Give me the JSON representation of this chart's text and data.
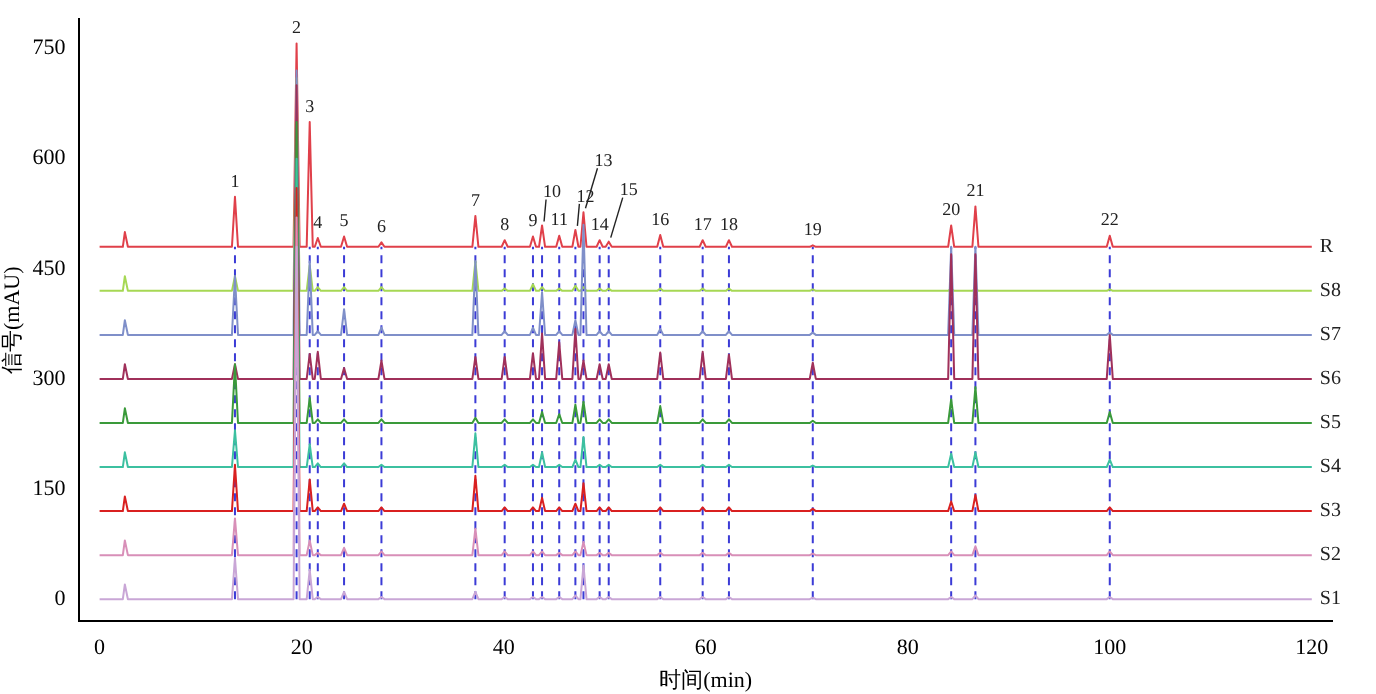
{
  "chart_data": {
    "type": "line",
    "xlabel": "时间(min)",
    "ylabel": "信号(mAU)",
    "xlim": [
      -2,
      122
    ],
    "xticks": [
      0,
      20,
      40,
      60,
      80,
      100,
      120
    ],
    "ylim": [
      -30,
      790
    ],
    "yticks": [
      0,
      150,
      300,
      450,
      600,
      750
    ],
    "grid": false,
    "legend": false,
    "marker": "none",
    "line_style": "solid",
    "x": [
      0,
      2.3,
      2.5,
      2.8,
      13.1,
      13.4,
      13.7,
      19.2,
      19.5,
      19.8,
      20.5,
      20.8,
      21.1,
      21.3,
      21.6,
      21.9,
      23.9,
      24.2,
      24.5,
      27.6,
      27.9,
      28.2,
      36.9,
      37.2,
      37.5,
      39.8,
      40.1,
      40.4,
      42.6,
      42.9,
      43.2,
      43.5,
      43.8,
      44.1,
      45.2,
      45.5,
      45.8,
      46.8,
      47.1,
      47.4,
      47.6,
      47.9,
      48.2,
      49.2,
      49.5,
      49.8,
      50.1,
      50.4,
      50.7,
      55.2,
      55.5,
      55.8,
      59.4,
      59.7,
      60.0,
      62.0,
      62.3,
      62.6,
      70.3,
      70.6,
      70.9,
      84.0,
      84.3,
      84.6,
      86.4,
      86.7,
      87.0,
      99.7,
      100,
      100.3,
      120
    ],
    "series": [
      {
        "name": "S1",
        "color": "#c9a6d6",
        "values": [
          0,
          0,
          20,
          0,
          0,
          56,
          0,
          0,
          480,
          0,
          0,
          40,
          0,
          0,
          3,
          0,
          0,
          10,
          0,
          0,
          3,
          0,
          0,
          10,
          0,
          0,
          3,
          0,
          0,
          3,
          0,
          0,
          3,
          0,
          0,
          3,
          0,
          0,
          5,
          0,
          0,
          46,
          0,
          0,
          3,
          0,
          0,
          3,
          0,
          0,
          3,
          0,
          0,
          3,
          0,
          0,
          3,
          0,
          0,
          2,
          0,
          0,
          3,
          0,
          0,
          5,
          0,
          0,
          3,
          0,
          0
        ]
      },
      {
        "name": "S2",
        "color": "#d88fb8",
        "values": [
          60,
          60,
          80,
          60,
          60,
          110,
          60,
          60,
          520,
          60,
          60,
          80,
          60,
          60,
          63,
          60,
          60,
          70,
          60,
          60,
          65,
          60,
          60,
          96,
          60,
          60,
          65,
          60,
          60,
          65,
          60,
          60,
          65,
          60,
          60,
          63,
          60,
          60,
          65,
          60,
          60,
          78,
          60,
          60,
          63,
          60,
          60,
          63,
          60,
          60,
          63,
          60,
          60,
          63,
          60,
          60,
          63,
          60,
          60,
          62,
          60,
          60,
          65,
          60,
          60,
          72,
          60,
          60,
          65,
          60,
          60
        ]
      },
      {
        "name": "S3",
        "color": "#d92020",
        "values": [
          120,
          120,
          140,
          120,
          120,
          183,
          120,
          120,
          560,
          120,
          120,
          163,
          120,
          120,
          125,
          120,
          120,
          130,
          120,
          120,
          125,
          120,
          120,
          168,
          120,
          120,
          125,
          120,
          120,
          125,
          120,
          120,
          138,
          120,
          120,
          125,
          120,
          120,
          130,
          120,
          120,
          158,
          120,
          120,
          125,
          120,
          120,
          125,
          120,
          120,
          125,
          120,
          120,
          125,
          120,
          120,
          125,
          120,
          120,
          123,
          120,
          120,
          133,
          120,
          120,
          142,
          120,
          120,
          125,
          120,
          120
        ]
      },
      {
        "name": "S4",
        "color": "#3cc0a0",
        "values": [
          180,
          180,
          200,
          180,
          180,
          230,
          180,
          180,
          600,
          180,
          180,
          211,
          180,
          180,
          185,
          180,
          180,
          185,
          180,
          180,
          183,
          180,
          180,
          226,
          180,
          180,
          183,
          180,
          180,
          183,
          180,
          180,
          200,
          180,
          180,
          183,
          180,
          180,
          190,
          180,
          180,
          221,
          180,
          180,
          183,
          180,
          180,
          183,
          180,
          180,
          183,
          180,
          180,
          183,
          180,
          180,
          183,
          180,
          180,
          182,
          180,
          180,
          198,
          180,
          180,
          200,
          180,
          180,
          190,
          180,
          180
        ]
      },
      {
        "name": "S5",
        "color": "#3a9a3a",
        "values": [
          240,
          240,
          260,
          240,
          240,
          320,
          240,
          240,
          650,
          240,
          240,
          274,
          240,
          240,
          245,
          240,
          240,
          245,
          240,
          240,
          245,
          240,
          240,
          247,
          240,
          240,
          245,
          240,
          240,
          245,
          240,
          240,
          255,
          240,
          240,
          252,
          240,
          240,
          265,
          240,
          240,
          269,
          240,
          240,
          245,
          240,
          240,
          245,
          240,
          240,
          263,
          240,
          240,
          245,
          240,
          240,
          245,
          240,
          240,
          243,
          240,
          240,
          272,
          240,
          240,
          289,
          240,
          240,
          255,
          240,
          240
        ]
      },
      {
        "name": "S6",
        "color": "#a0305a",
        "values": [
          300,
          300,
          320,
          300,
          300,
          320,
          300,
          300,
          700,
          300,
          300,
          334,
          300,
          300,
          337,
          300,
          300,
          315,
          300,
          300,
          325,
          300,
          300,
          330,
          300,
          300,
          330,
          300,
          300,
          335,
          300,
          300,
          362,
          300,
          300,
          350,
          300,
          300,
          368,
          300,
          300,
          325,
          300,
          300,
          320,
          300,
          300,
          320,
          300,
          300,
          336,
          300,
          300,
          337,
          300,
          300,
          333,
          300,
          300,
          322,
          300,
          300,
          470,
          300,
          300,
          470,
          300,
          300,
          360,
          300,
          300
        ]
      },
      {
        "name": "S7",
        "color": "#7f8fc9",
        "values": [
          360,
          360,
          380,
          360,
          360,
          440,
          360,
          360,
          720,
          360,
          360,
          460,
          360,
          360,
          365,
          360,
          360,
          395,
          360,
          360,
          370,
          360,
          360,
          460,
          360,
          360,
          365,
          360,
          360,
          370,
          360,
          360,
          418,
          360,
          360,
          365,
          360,
          360,
          380,
          360,
          360,
          510,
          360,
          360,
          365,
          360,
          360,
          365,
          360,
          360,
          368,
          360,
          360,
          365,
          360,
          360,
          365,
          360,
          360,
          363,
          360,
          360,
          480,
          360,
          360,
          480,
          360,
          360,
          363,
          360,
          360
        ]
      },
      {
        "name": "S8",
        "color": "#a6d854",
        "values": [
          420,
          420,
          440,
          420,
          420,
          440,
          420,
          420,
          710,
          420,
          420,
          455,
          420,
          420,
          425,
          420,
          420,
          425,
          420,
          420,
          425,
          420,
          420,
          460,
          420,
          420,
          423,
          420,
          420,
          429,
          420,
          420,
          425,
          420,
          420,
          423,
          420,
          420,
          427,
          420,
          420,
          425,
          420,
          420,
          423,
          420,
          420,
          423,
          420,
          420,
          423,
          420,
          420,
          423,
          420,
          420,
          423,
          420,
          420,
          422,
          420,
          420,
          423,
          420,
          420,
          423,
          420,
          420,
          422,
          420,
          420
        ]
      },
      {
        "name": "R",
        "color": "#e0404a",
        "values": [
          480,
          480,
          500,
          480,
          480,
          548,
          480,
          480,
          757,
          480,
          480,
          650,
          480,
          480,
          492,
          480,
          480,
          494,
          480,
          480,
          486,
          480,
          480,
          522,
          480,
          480,
          489,
          480,
          480,
          494,
          480,
          480,
          509,
          480,
          480,
          495,
          480,
          480,
          503,
          480,
          480,
          527,
          480,
          480,
          489,
          480,
          480,
          487,
          480,
          480,
          496,
          480,
          480,
          489,
          480,
          480,
          489,
          480,
          480,
          482,
          480,
          480,
          509,
          480,
          480,
          535,
          480,
          480,
          495,
          480,
          480
        ]
      }
    ],
    "ref_lines": [
      {
        "axis": "x",
        "value": 13.4,
        "color": "#3b3bd6",
        "line_style": "dashed"
      },
      {
        "axis": "x",
        "value": 19.5,
        "color": "#3b3bd6",
        "line_style": "dashed"
      },
      {
        "axis": "x",
        "value": 20.8,
        "color": "#3b3bd6",
        "line_style": "dashed"
      },
      {
        "axis": "x",
        "value": 21.6,
        "color": "#3b3bd6",
        "line_style": "dashed"
      },
      {
        "axis": "x",
        "value": 24.2,
        "color": "#3b3bd6",
        "line_style": "dashed"
      },
      {
        "axis": "x",
        "value": 27.9,
        "color": "#3b3bd6",
        "line_style": "dashed"
      },
      {
        "axis": "x",
        "value": 37.2,
        "color": "#3b3bd6",
        "line_style": "dashed"
      },
      {
        "axis": "x",
        "value": 40.1,
        "color": "#3b3bd6",
        "line_style": "dashed"
      },
      {
        "axis": "x",
        "value": 42.9,
        "color": "#3b3bd6",
        "line_style": "dashed"
      },
      {
        "axis": "x",
        "value": 43.8,
        "color": "#3b3bd6",
        "line_style": "dashed"
      },
      {
        "axis": "x",
        "value": 45.5,
        "color": "#3b3bd6",
        "line_style": "dashed"
      },
      {
        "axis": "x",
        "value": 47.1,
        "color": "#3b3bd6",
        "line_style": "dashed"
      },
      {
        "axis": "x",
        "value": 47.9,
        "color": "#3b3bd6",
        "line_style": "dashed"
      },
      {
        "axis": "x",
        "value": 49.5,
        "color": "#3b3bd6",
        "line_style": "dashed"
      },
      {
        "axis": "x",
        "value": 50.4,
        "color": "#3b3bd6",
        "line_style": "dashed"
      },
      {
        "axis": "x",
        "value": 55.5,
        "color": "#3b3bd6",
        "line_style": "dashed"
      },
      {
        "axis": "x",
        "value": 59.7,
        "color": "#3b3bd6",
        "line_style": "dashed"
      },
      {
        "axis": "x",
        "value": 62.3,
        "color": "#3b3bd6",
        "line_style": "dashed"
      },
      {
        "axis": "x",
        "value": 70.6,
        "color": "#3b3bd6",
        "line_style": "dashed"
      },
      {
        "axis": "x",
        "value": 84.3,
        "color": "#3b3bd6",
        "line_style": "dashed"
      },
      {
        "axis": "x",
        "value": 86.7,
        "color": "#3b3bd6",
        "line_style": "dashed"
      },
      {
        "axis": "x",
        "value": 100,
        "color": "#3b3bd6",
        "line_style": "dashed"
      }
    ],
    "annotations": [
      {
        "text": "1",
        "x": 13.4,
        "y": 548
      },
      {
        "text": "2",
        "x": 19.5,
        "y": 757
      },
      {
        "text": "3",
        "x": 20.8,
        "y": 650
      },
      {
        "text": "4",
        "x": 21.6,
        "y": 492
      },
      {
        "text": "5",
        "x": 24.2,
        "y": 494
      },
      {
        "text": "6",
        "x": 27.9,
        "y": 486
      },
      {
        "text": "7",
        "x": 37.2,
        "y": 522
      },
      {
        "text": "8",
        "x": 40.1,
        "y": 489
      },
      {
        "text": "9",
        "x": 42.9,
        "y": 494
      },
      {
        "text": "10",
        "x": 43.8,
        "y": 509
      },
      {
        "text": "11",
        "x": 45.5,
        "y": 495
      },
      {
        "text": "12",
        "x": 47.1,
        "y": 503
      },
      {
        "text": "13",
        "x": 47.9,
        "y": 527
      },
      {
        "text": "14",
        "x": 49.5,
        "y": 489
      },
      {
        "text": "15",
        "x": 50.4,
        "y": 487
      },
      {
        "text": "16",
        "x": 55.5,
        "y": 496
      },
      {
        "text": "17",
        "x": 59.7,
        "y": 489
      },
      {
        "text": "18",
        "x": 62.3,
        "y": 489
      },
      {
        "text": "19",
        "x": 70.6,
        "y": 482
      },
      {
        "text": "20",
        "x": 84.3,
        "y": 509
      },
      {
        "text": "21",
        "x": 86.7,
        "y": 535
      },
      {
        "text": "22",
        "x": 100,
        "y": 495
      }
    ]
  }
}
